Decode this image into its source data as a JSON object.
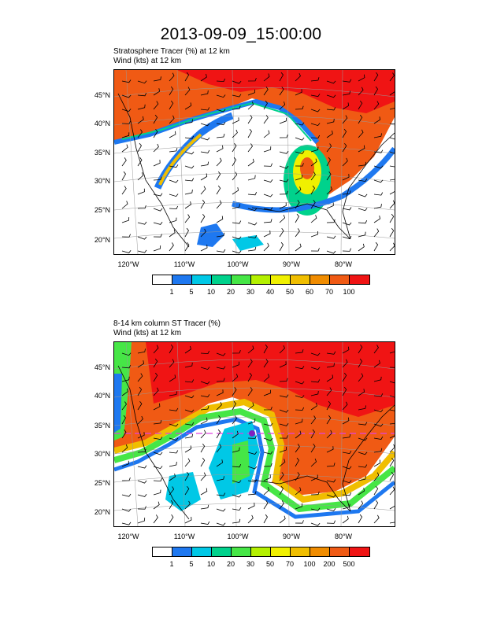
{
  "title": "2013-09-09_15:00:00",
  "panels": [
    {
      "title_line1": "Stratosphere Tracer   (%)     at   12 km",
      "title_line2": "Wind   (kts)     at   12 km",
      "lat_labels": [
        "45°N",
        "40°N",
        "35°N",
        "30°N",
        "25°N",
        "20°N"
      ],
      "lon_labels": [
        "120°W",
        "110°W",
        "100°W",
        "90°W",
        "80°W"
      ],
      "colorbar": {
        "colors": [
          "#ffffff",
          "#1e78f0",
          "#00c8e6",
          "#00d28c",
          "#46e646",
          "#b4f000",
          "#f0f000",
          "#f0be00",
          "#f08c00",
          "#f05a14",
          "#f01414"
        ],
        "labels": [
          "1",
          "5",
          "10",
          "20",
          "30",
          "40",
          "50",
          "60",
          "70",
          "100"
        ]
      }
    },
    {
      "title_line1": "8-14 km column ST Tracer   (%)",
      "title_line2": "Wind   (kts)     at   12 km",
      "lat_labels": [
        "45°N",
        "40°N",
        "35°N",
        "30°N",
        "25°N",
        "20°N"
      ],
      "lon_labels": [
        "120°W",
        "110°W",
        "100°W",
        "90°W",
        "80°W"
      ],
      "colorbar": {
        "colors": [
          "#ffffff",
          "#1e78f0",
          "#00c8e6",
          "#00d28c",
          "#46e646",
          "#b4f000",
          "#f0f000",
          "#f0be00",
          "#f08c00",
          "#f05a14",
          "#f01414"
        ],
        "labels": [
          "1",
          "5",
          "10",
          "20",
          "30",
          "50",
          "70",
          "100",
          "200",
          "500"
        ]
      }
    }
  ]
}
